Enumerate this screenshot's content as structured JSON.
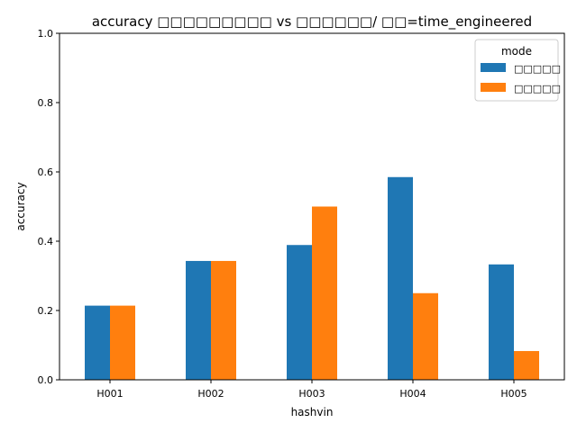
{
  "chart_data": {
    "type": "bar",
    "title": "accuracy □□□□□□□□□ vs □□□□□□/ □□=time_engineered",
    "xlabel": "hashvin",
    "ylabel": "accuracy",
    "ylim": [
      0,
      1.0
    ],
    "yticks": [
      0.0,
      0.2,
      0.4,
      0.6,
      0.8,
      1.0
    ],
    "grid": false,
    "legend_title": "mode",
    "legend_position": "top-right",
    "categories": [
      "H001",
      "H002",
      "H003",
      "H004",
      "H005"
    ],
    "series": [
      {
        "name": "□□□□□",
        "color": "#1f77b4",
        "values": [
          0.214,
          0.343,
          0.389,
          0.585,
          0.333
        ]
      },
      {
        "name": "□□□□□",
        "color": "#ff7f0e",
        "values": [
          0.214,
          0.343,
          0.5,
          0.25,
          0.083
        ]
      }
    ]
  }
}
